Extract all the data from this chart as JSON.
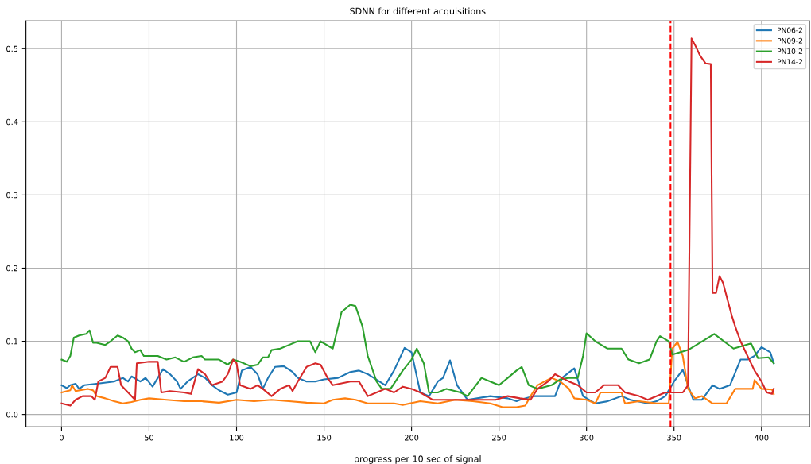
{
  "chart_data": {
    "type": "line",
    "title": "SDNN for different acquisitions",
    "xlabel": "progress per 10 sec of signal",
    "xlim": [
      -20.35,
      427.35
    ],
    "xticks": [
      0,
      50,
      100,
      150,
      200,
      250,
      300,
      350,
      400
    ],
    "ylim": [
      -0.017,
      0.538
    ],
    "yticks": [
      {
        "value": 0.0,
        "label": "0.0"
      },
      0.1,
      0.2,
      0.3,
      0.4,
      0.5
    ],
    "grid": true,
    "legend": "top right",
    "marker": "none",
    "line_style": "solid",
    "ref_lines": [
      {
        "axis": "x",
        "value": 348,
        "color": "#ff0000",
        "line_style": "dashed"
      }
    ],
    "series": [
      {
        "name": "PN06-2",
        "color": "#1f77b4",
        "x": [
          0,
          3,
          5,
          8,
          10,
          13,
          20,
          30,
          35,
          38,
          40,
          45,
          48,
          52,
          55,
          58,
          62,
          66,
          68,
          72,
          78,
          82,
          86,
          90,
          95,
          100,
          103,
          108,
          112,
          115,
          118,
          122,
          127,
          132,
          135,
          140,
          145,
          150,
          158,
          165,
          170,
          175,
          185,
          190,
          196,
          200,
          205,
          210,
          215,
          218,
          222,
          226,
          232,
          245,
          255,
          260,
          262,
          270,
          282,
          286,
          293,
          298,
          305,
          312,
          320,
          325,
          335,
          340,
          345,
          350,
          355,
          358,
          361,
          366,
          372,
          376,
          382,
          388,
          392,
          396,
          400,
          405,
          407
        ],
        "values": [
          0.04,
          0.036,
          0.04,
          0.042,
          0.035,
          0.04,
          0.042,
          0.045,
          0.05,
          0.045,
          0.052,
          0.045,
          0.05,
          0.038,
          0.05,
          0.062,
          0.055,
          0.045,
          0.035,
          0.045,
          0.055,
          0.05,
          0.04,
          0.033,
          0.027,
          0.03,
          0.06,
          0.065,
          0.055,
          0.035,
          0.05,
          0.065,
          0.066,
          0.058,
          0.05,
          0.045,
          0.045,
          0.048,
          0.05,
          0.058,
          0.06,
          0.055,
          0.04,
          0.06,
          0.091,
          0.085,
          0.03,
          0.025,
          0.045,
          0.05,
          0.074,
          0.04,
          0.02,
          0.025,
          0.022,
          0.018,
          0.02,
          0.025,
          0.025,
          0.05,
          0.063,
          0.025,
          0.015,
          0.018,
          0.025,
          0.02,
          0.015,
          0.018,
          0.025,
          0.045,
          0.061,
          0.04,
          0.02,
          0.02,
          0.04,
          0.035,
          0.04,
          0.075,
          0.075,
          0.08,
          0.092,
          0.085,
          0.07
        ]
      },
      {
        "name": "PN09-2",
        "color": "#ff7f0e",
        "x": [
          0,
          5,
          6,
          8,
          15,
          18,
          20,
          25,
          30,
          35,
          40,
          45,
          50,
          60,
          70,
          80,
          90,
          100,
          110,
          120,
          130,
          140,
          150,
          155,
          162,
          168,
          175,
          190,
          195,
          205,
          215,
          225,
          235,
          245,
          252,
          260,
          265,
          268,
          272,
          276,
          280,
          285,
          290,
          293,
          300,
          305,
          308,
          315,
          320,
          322,
          330,
          340,
          347,
          349,
          352,
          355,
          358,
          362,
          366,
          372,
          380,
          385,
          395,
          396,
          400,
          406,
          407
        ],
        "values": [
          0.03,
          0.033,
          0.04,
          0.032,
          0.035,
          0.033,
          0.025,
          0.022,
          0.018,
          0.015,
          0.017,
          0.02,
          0.022,
          0.02,
          0.018,
          0.018,
          0.016,
          0.02,
          0.018,
          0.02,
          0.018,
          0.016,
          0.015,
          0.02,
          0.022,
          0.02,
          0.015,
          0.015,
          0.013,
          0.018,
          0.015,
          0.02,
          0.018,
          0.015,
          0.01,
          0.01,
          0.012,
          0.025,
          0.04,
          0.045,
          0.05,
          0.045,
          0.035,
          0.022,
          0.02,
          0.015,
          0.03,
          0.03,
          0.03,
          0.015,
          0.018,
          0.015,
          0.015,
          0.09,
          0.099,
          0.08,
          0.035,
          0.022,
          0.025,
          0.015,
          0.015,
          0.035,
          0.035,
          0.047,
          0.035,
          0.034,
          0.028
        ]
      },
      {
        "name": "PN10-2",
        "color": "#2ca02c",
        "x": [
          0,
          3,
          5,
          7,
          10,
          14,
          16,
          18,
          20,
          25,
          28,
          32,
          35,
          38,
          40,
          42,
          45,
          47,
          55,
          60,
          65,
          70,
          75,
          80,
          82,
          90,
          95,
          98,
          102,
          108,
          112,
          115,
          118,
          120,
          125,
          130,
          135,
          140,
          142,
          145,
          148,
          155,
          160,
          165,
          168,
          172,
          175,
          180,
          183,
          188,
          195,
          200,
          203,
          207,
          210,
          215,
          220,
          228,
          232,
          240,
          245,
          250,
          255,
          260,
          263,
          267,
          272,
          280,
          285,
          290,
          295,
          298,
          300,
          305,
          312,
          320,
          324,
          330,
          336,
          340,
          342,
          347,
          349,
          358,
          373,
          384,
          394,
          398,
          404,
          407
        ],
        "values": [
          0.075,
          0.072,
          0.08,
          0.105,
          0.108,
          0.11,
          0.115,
          0.098,
          0.098,
          0.095,
          0.1,
          0.108,
          0.105,
          0.1,
          0.09,
          0.085,
          0.088,
          0.08,
          0.08,
          0.075,
          0.078,
          0.072,
          0.078,
          0.08,
          0.075,
          0.075,
          0.068,
          0.075,
          0.072,
          0.066,
          0.068,
          0.078,
          0.078,
          0.088,
          0.09,
          0.095,
          0.1,
          0.1,
          0.1,
          0.085,
          0.1,
          0.09,
          0.14,
          0.15,
          0.148,
          0.12,
          0.08,
          0.045,
          0.035,
          0.035,
          0.06,
          0.075,
          0.09,
          0.07,
          0.03,
          0.03,
          0.035,
          0.03,
          0.025,
          0.05,
          0.045,
          0.04,
          0.05,
          0.06,
          0.065,
          0.04,
          0.035,
          0.04,
          0.048,
          0.05,
          0.05,
          0.08,
          0.111,
          0.1,
          0.09,
          0.09,
          0.075,
          0.07,
          0.075,
          0.1,
          0.107,
          0.1,
          0.082,
          0.088,
          0.11,
          0.09,
          0.097,
          0.077,
          0.078,
          0.07
        ]
      },
      {
        "name": "PN14-2",
        "color": "#d62728",
        "x": [
          0,
          5,
          8,
          12,
          17,
          19,
          21,
          25,
          28,
          32,
          34,
          38,
          42,
          43,
          50,
          55,
          57,
          62,
          70,
          74,
          78,
          82,
          86,
          92,
          95,
          98,
          100,
          102,
          108,
          112,
          115,
          120,
          125,
          130,
          132,
          135,
          140,
          145,
          148,
          152,
          155,
          165,
          170,
          175,
          180,
          185,
          190,
          195,
          200,
          205,
          212,
          230,
          240,
          248,
          255,
          262,
          268,
          272,
          278,
          282,
          286,
          290,
          295,
          300,
          305,
          310,
          318,
          322,
          330,
          335,
          345,
          355,
          358,
          360,
          362,
          365,
          368,
          371,
          372,
          374,
          376,
          378,
          383,
          385,
          388,
          392,
          396,
          400,
          403,
          406,
          407
        ],
        "values": [
          0.015,
          0.012,
          0.02,
          0.025,
          0.025,
          0.02,
          0.045,
          0.05,
          0.065,
          0.065,
          0.04,
          0.03,
          0.02,
          0.07,
          0.072,
          0.072,
          0.03,
          0.032,
          0.03,
          0.028,
          0.062,
          0.055,
          0.04,
          0.045,
          0.055,
          0.075,
          0.07,
          0.04,
          0.035,
          0.04,
          0.035,
          0.025,
          0.035,
          0.04,
          0.032,
          0.045,
          0.065,
          0.07,
          0.068,
          0.05,
          0.04,
          0.045,
          0.045,
          0.025,
          0.03,
          0.035,
          0.03,
          0.038,
          0.035,
          0.03,
          0.02,
          0.02,
          0.02,
          0.02,
          0.025,
          0.022,
          0.02,
          0.035,
          0.045,
          0.055,
          0.05,
          0.045,
          0.04,
          0.03,
          0.03,
          0.04,
          0.04,
          0.03,
          0.025,
          0.02,
          0.03,
          0.03,
          0.04,
          0.514,
          0.505,
          0.49,
          0.48,
          0.479,
          0.166,
          0.166,
          0.189,
          0.18,
          0.135,
          0.12,
          0.1,
          0.08,
          0.06,
          0.045,
          0.03,
          0.028,
          0.035
        ]
      }
    ]
  }
}
